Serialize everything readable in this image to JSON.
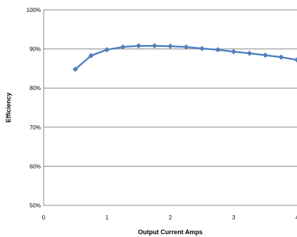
{
  "chart_data": {
    "type": "line",
    "title": "",
    "xlabel": "Output Current Amps",
    "ylabel": "Efficiency",
    "xlim": [
      0,
      4
    ],
    "ylim": [
      50,
      100
    ],
    "x_ticks": [
      0,
      1,
      2,
      3,
      4
    ],
    "x_tick_labels": [
      "0",
      "1",
      "2",
      "3",
      "4"
    ],
    "y_ticks": [
      50,
      60,
      70,
      80,
      90,
      100
    ],
    "y_tick_labels": [
      "50%",
      "60%",
      "70%",
      "80%",
      "90%",
      "100%"
    ],
    "grid": "horizontal",
    "legend": "none",
    "series": [
      {
        "color": "#4f81bd",
        "marker": "diamond",
        "points": [
          {
            "x": 0.5,
            "y": 84.8
          },
          {
            "x": 0.75,
            "y": 88.3
          },
          {
            "x": 1.0,
            "y": 89.8
          },
          {
            "x": 1.25,
            "y": 90.5
          },
          {
            "x": 1.5,
            "y": 90.8
          },
          {
            "x": 1.75,
            "y": 90.8
          },
          {
            "x": 2.0,
            "y": 90.7
          },
          {
            "x": 2.25,
            "y": 90.5
          },
          {
            "x": 2.5,
            "y": 90.1
          },
          {
            "x": 2.75,
            "y": 89.8
          },
          {
            "x": 3.0,
            "y": 89.3
          },
          {
            "x": 3.25,
            "y": 88.9
          },
          {
            "x": 3.5,
            "y": 88.4
          },
          {
            "x": 3.75,
            "y": 87.9
          },
          {
            "x": 4.0,
            "y": 87.2
          }
        ]
      }
    ]
  }
}
